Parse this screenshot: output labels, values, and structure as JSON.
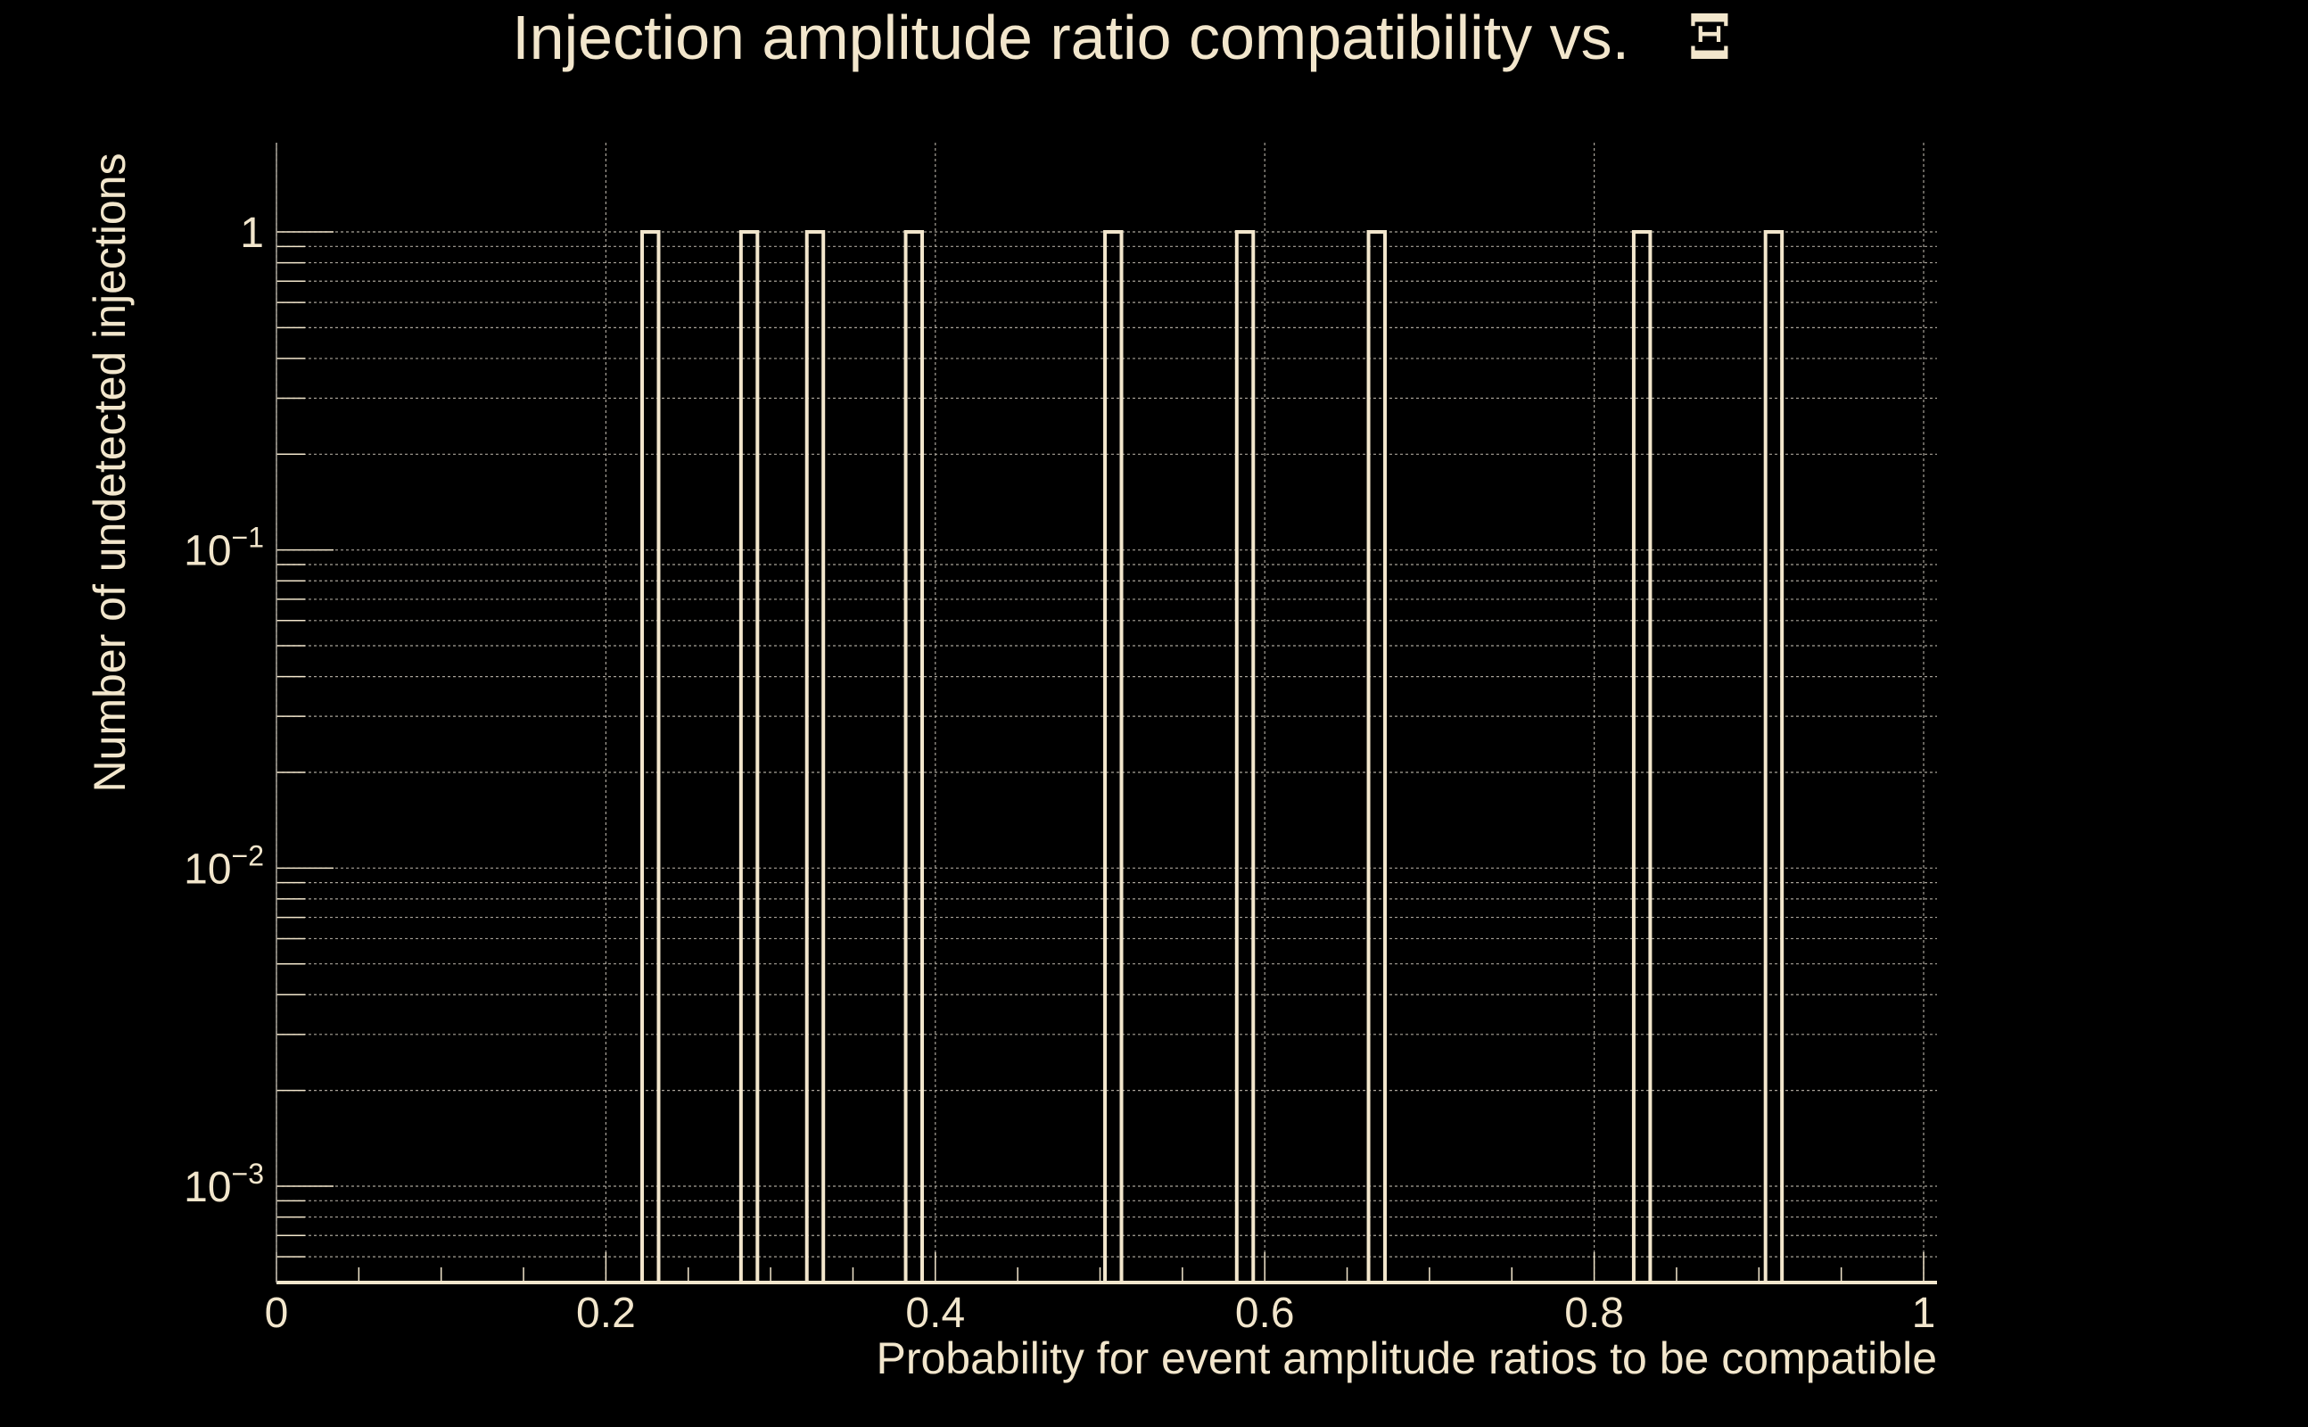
{
  "colors": {
    "background": "#000000",
    "foreground": "#f2e6cc",
    "grid": "#a8a298"
  },
  "chart_data": {
    "type": "bar",
    "title": "Injection amplitude ratio compatibility vs.",
    "title_symbol": "Ξ",
    "xlabel": "Probability for event amplitude ratios to be compatible",
    "ylabel": "Number of undetected injections",
    "xlim": [
      0,
      1
    ],
    "ylim": [
      0.0005,
      2
    ],
    "yscale": "log",
    "grid": true,
    "x_ticks": [
      {
        "value": 0,
        "label": "0"
      },
      {
        "value": 0.2,
        "label": "0.2"
      },
      {
        "value": 0.4,
        "label": "0.4"
      },
      {
        "value": 0.6,
        "label": "0.6"
      },
      {
        "value": 0.8,
        "label": "0.8"
      },
      {
        "value": 1,
        "label": "1"
      }
    ],
    "y_ticks": [
      {
        "value": 1,
        "base": "1",
        "exp": ""
      },
      {
        "value": 0.1,
        "base": "10",
        "exp": "−1"
      },
      {
        "value": 0.01,
        "base": "10",
        "exp": "−2"
      },
      {
        "value": 0.001,
        "base": "10",
        "exp": "−3"
      }
    ],
    "bins": [
      {
        "x0": 0.222,
        "x1": 0.232,
        "value": 1
      },
      {
        "x0": 0.282,
        "x1": 0.292,
        "value": 1
      },
      {
        "x0": 0.322,
        "x1": 0.332,
        "value": 1
      },
      {
        "x0": 0.382,
        "x1": 0.392,
        "value": 1
      },
      {
        "x0": 0.503,
        "x1": 0.513,
        "value": 1
      },
      {
        "x0": 0.583,
        "x1": 0.593,
        "value": 1
      },
      {
        "x0": 0.663,
        "x1": 0.673,
        "value": 1
      },
      {
        "x0": 0.824,
        "x1": 0.834,
        "value": 1
      },
      {
        "x0": 0.904,
        "x1": 0.914,
        "value": 1
      }
    ]
  }
}
